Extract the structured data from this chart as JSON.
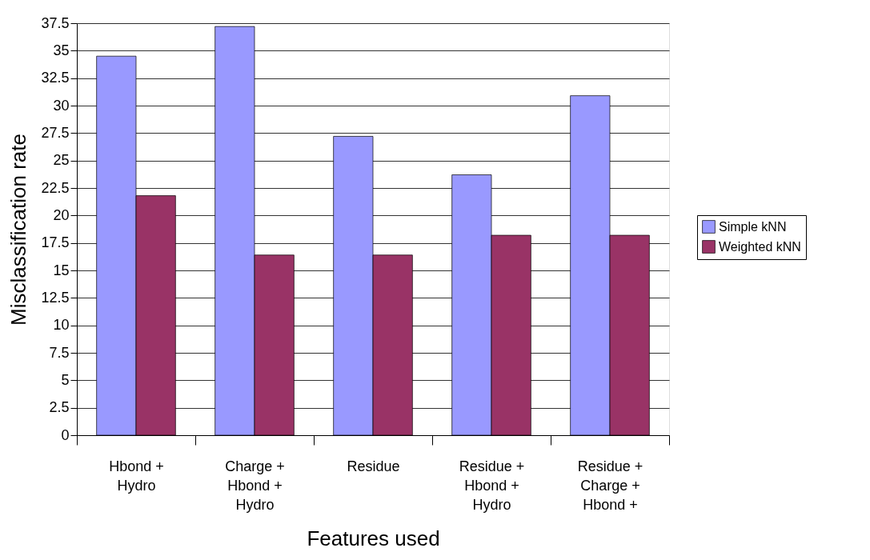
{
  "chart_data": {
    "type": "bar",
    "xlabel": "Features used",
    "ylabel": "Misclassification rate",
    "categories": [
      "Hbond +\nHydro",
      "Charge +\nHbond +\nHydro",
      "Residue",
      "Residue +\nHbond +\nHydro",
      "Residue +\nCharge +\nHbond +"
    ],
    "series": [
      {
        "name": "Simple kNN",
        "color": "#9999ff",
        "values": [
          34.5,
          37.2,
          27.2,
          23.7,
          30.9
        ]
      },
      {
        "name": "Weighted kNN",
        "color": "#993366",
        "values": [
          21.8,
          16.4,
          16.4,
          18.2,
          18.2
        ]
      }
    ],
    "ylim": [
      0,
      37.5
    ],
    "yticks": [
      0,
      2.5,
      5,
      7.5,
      10,
      12.5,
      15,
      17.5,
      20,
      22.5,
      25,
      27.5,
      30,
      32.5,
      35,
      37.5
    ],
    "grid": "y",
    "legend": "right"
  }
}
